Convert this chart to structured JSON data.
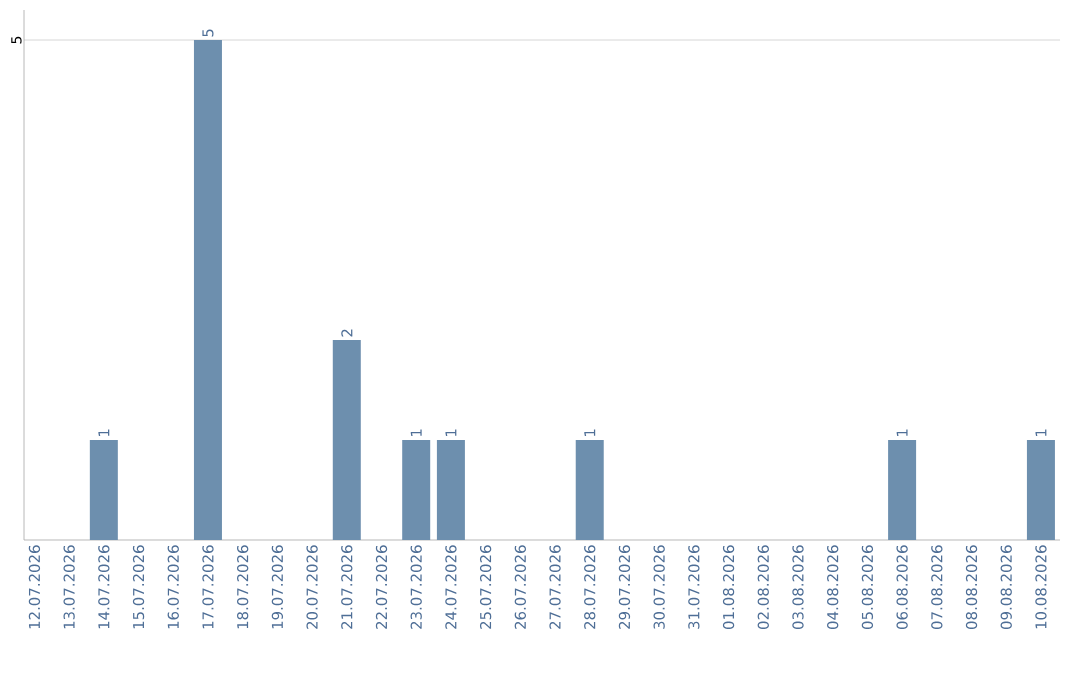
{
  "chart_data": {
    "type": "bar",
    "categories": [
      "12.07.2026",
      "13.07.2026",
      "14.07.2026",
      "15.07.2026",
      "16.07.2026",
      "17.07.2026",
      "18.07.2026",
      "19.07.2026",
      "20.07.2026",
      "21.07.2026",
      "22.07.2026",
      "23.07.2026",
      "24.07.2026",
      "25.07.2026",
      "26.07.2026",
      "27.07.2026",
      "28.07.2026",
      "29.07.2026",
      "30.07.2026",
      "31.07.2026",
      "01.08.2026",
      "02.08.2026",
      "03.08.2026",
      "04.08.2026",
      "05.08.2026",
      "06.08.2026",
      "07.08.2026",
      "08.08.2026",
      "09.08.2026",
      "10.08.2026"
    ],
    "values": [
      0,
      0,
      1,
      0,
      0,
      5,
      0,
      0,
      0,
      2,
      0,
      1,
      1,
      0,
      0,
      0,
      1,
      0,
      0,
      0,
      0,
      0,
      0,
      0,
      0,
      1,
      0,
      0,
      0,
      1
    ],
    "value_labels": [
      null,
      null,
      "1",
      null,
      null,
      "5",
      null,
      null,
      null,
      "2",
      null,
      "1",
      "1",
      null,
      null,
      null,
      "1",
      null,
      null,
      null,
      null,
      null,
      null,
      null,
      null,
      "1",
      null,
      null,
      null,
      "1"
    ],
    "color": "#6d8fae",
    "ylim": [
      0,
      5.3
    ],
    "yticks": [
      5
    ],
    "grid": "y"
  }
}
